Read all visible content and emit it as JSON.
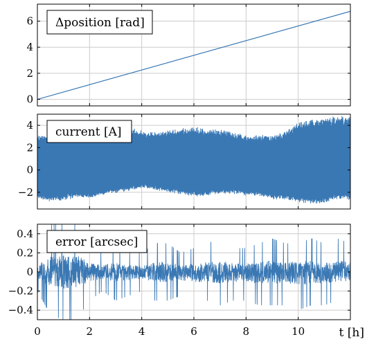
{
  "chart_data": [
    {
      "type": "line",
      "legend": "Δposition [rad]",
      "legend_position": "top-left",
      "grid": true,
      "xlim": [
        0,
        12
      ],
      "ylim": [
        -0.5,
        7.3
      ],
      "yticks": [
        0,
        2,
        4,
        6
      ],
      "ytick_labels": [
        "0",
        "2",
        "4",
        "6"
      ],
      "series": [
        {
          "x": [
            0,
            12
          ],
          "y": [
            0,
            6.75
          ],
          "color": "#3a78b4"
        }
      ]
    },
    {
      "type": "line",
      "legend": "current [A]",
      "legend_position": "top-left",
      "grid": true,
      "style": "dense-oscillation",
      "xlim": [
        0,
        12
      ],
      "ylim": [
        -3.5,
        5
      ],
      "yticks": [
        -2,
        0,
        2,
        4
      ],
      "ytick_labels": [
        "−2",
        "0",
        "2",
        "4"
      ],
      "color": "#3a78b4",
      "envelope": {
        "t": [
          0,
          0.5,
          1,
          1.5,
          2,
          2.5,
          3,
          3.5,
          4,
          4.5,
          5,
          5.5,
          6,
          6.5,
          7,
          7.5,
          8,
          8.5,
          9,
          9.5,
          10,
          10.5,
          11,
          11.5,
          12
        ],
        "upper": [
          3.0,
          3.1,
          3.2,
          3.4,
          3.6,
          3.5,
          3.6,
          3.7,
          3.4,
          3.3,
          3.5,
          3.6,
          3.8,
          3.5,
          3.6,
          3.3,
          3.0,
          3.0,
          3.0,
          3.3,
          4.2,
          4.4,
          4.6,
          4.7,
          4.8
        ],
        "lower": [
          -2.5,
          -2.7,
          -2.6,
          -2.4,
          -2.5,
          -2.1,
          -2.0,
          -1.8,
          -1.5,
          -1.7,
          -1.9,
          -2.1,
          -2.3,
          -2.2,
          -2.0,
          -2.0,
          -2.2,
          -2.3,
          -2.5,
          -2.6,
          -2.8,
          -2.9,
          -2.9,
          -2.5,
          -2.6
        ]
      }
    },
    {
      "type": "line",
      "legend": "error [arcsec]",
      "legend_position": "top-left",
      "grid": true,
      "style": "noisy",
      "xlim": [
        0,
        12
      ],
      "ylim": [
        -0.5,
        0.5
      ],
      "yticks": [
        -0.4,
        -0.2,
        0,
        0.2,
        0.4
      ],
      "ytick_labels": [
        "−0.4",
        "−0.2",
        "0",
        "0.2",
        "0.4"
      ],
      "xticks": [
        0,
        2,
        4,
        6,
        8,
        10
      ],
      "xtick_labels": [
        "0",
        "2",
        "4",
        "6",
        "8",
        "10"
      ],
      "xlabel": "t [h]",
      "color": "#3a78b4",
      "envelope": {
        "t": [
          0,
          0.5,
          1,
          1.5,
          2,
          2.5,
          3,
          3.5,
          4,
          4.5,
          5,
          5.5,
          6,
          6.5,
          7,
          7.5,
          8,
          8.5,
          9,
          9.5,
          10,
          10.5,
          11,
          11.5,
          12
        ],
        "upper": [
          0.2,
          0.5,
          0.5,
          0.5,
          0.3,
          0.2,
          0.3,
          0.2,
          0.2,
          0.3,
          0.3,
          0.2,
          0.25,
          0.3,
          0.35,
          0.25,
          0.25,
          0.3,
          0.35,
          0.3,
          0.3,
          0.35,
          0.3,
          0.35,
          0.3
        ],
        "lower": [
          -0.2,
          -0.45,
          -0.5,
          -0.5,
          -0.3,
          -0.2,
          -0.3,
          -0.25,
          -0.2,
          -0.3,
          -0.3,
          -0.25,
          -0.3,
          -0.3,
          -0.35,
          -0.3,
          -0.3,
          -0.35,
          -0.35,
          -0.35,
          -0.4,
          -0.35,
          -0.35,
          -0.3,
          -0.35
        ]
      }
    }
  ]
}
